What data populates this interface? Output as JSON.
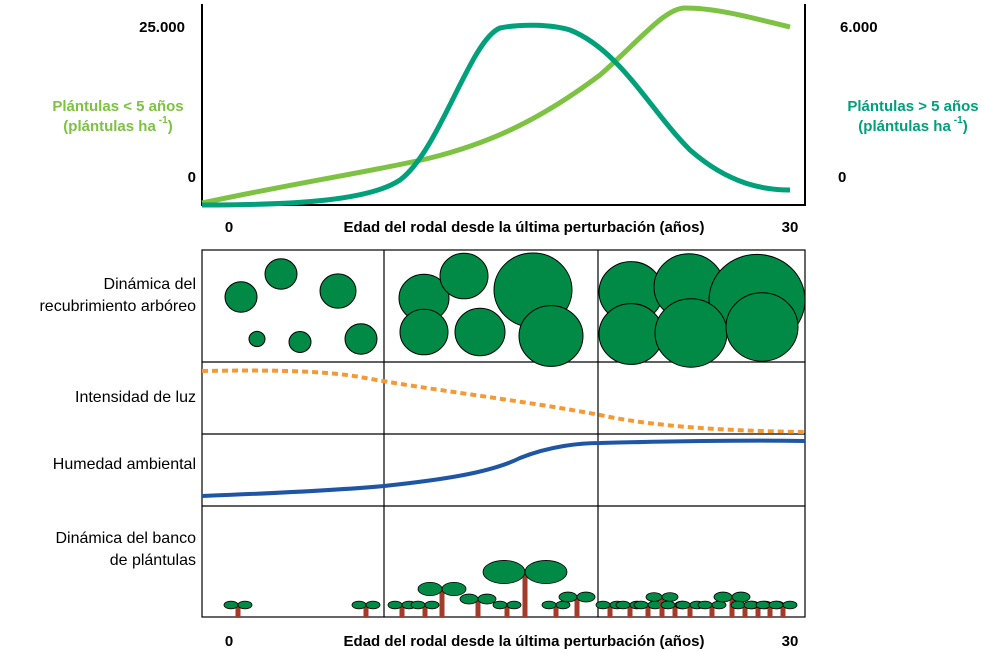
{
  "top_chart": {
    "left_axis": {
      "top": "25.000",
      "bottom": "0",
      "label": "Plántulas < 5 años",
      "unit_open": "(plántulas ha",
      "unit_sup": "-1",
      "unit_close": ")"
    },
    "right_axis": {
      "top": "6.000",
      "bottom": "0",
      "label": "Plántulas > 5 años",
      "unit_open": "(plántulas ha",
      "unit_sup": "-1",
      "unit_close": ")"
    },
    "x_axis": {
      "start": "0",
      "label": "Edad del rodal desde la última perturbación (años)",
      "end": "30"
    }
  },
  "panels": {
    "rows": [
      {
        "label_lines": [
          "Dinámica del",
          "recubrimiento arbóreo"
        ]
      },
      {
        "label_lines": [
          "Intensidad de luz"
        ]
      },
      {
        "label_lines": [
          "Humedad ambiental"
        ]
      },
      {
        "label_lines": [
          "Dinámica del banco",
          "de plántulas"
        ]
      }
    ],
    "x_axis": {
      "start": "0",
      "label": "Edad del rodal desde la última perturbación (años)",
      "end": "30"
    }
  }
}
